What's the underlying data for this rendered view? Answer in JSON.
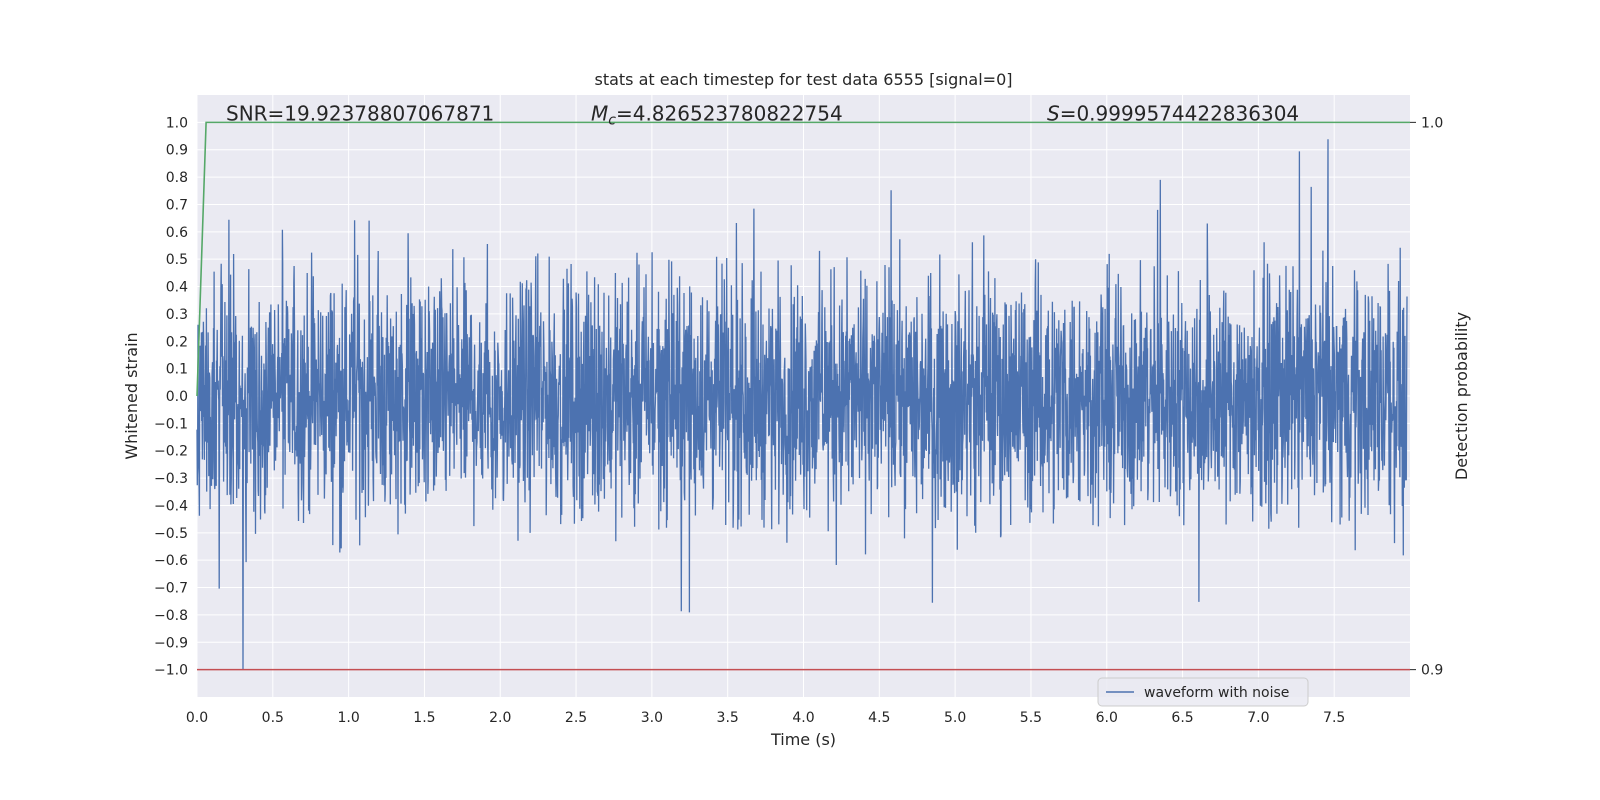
{
  "chart_data": {
    "type": "line",
    "title": "stats at each timestep for test data 6555 [signal=0]",
    "xlabel": "Time (s)",
    "ylabel": "Whitened strain",
    "y2label": "Detection probability",
    "xlim": [
      0.0,
      8.0
    ],
    "ylim": [
      -1.1,
      1.1
    ],
    "y2lim": [
      0.895,
      1.005
    ],
    "xticks": [
      "0.0",
      "0.5",
      "1.0",
      "1.5",
      "2.0",
      "2.5",
      "3.0",
      "3.5",
      "4.0",
      "4.5",
      "5.0",
      "5.5",
      "6.0",
      "6.5",
      "7.0",
      "7.5"
    ],
    "yticks": [
      "1.0",
      "0.9",
      "0.8",
      "0.7",
      "0.6",
      "0.5",
      "0.4",
      "0.3",
      "0.2",
      "0.1",
      "0.0",
      "−0.1",
      "−0.2",
      "−0.3",
      "−0.4",
      "−0.5",
      "−0.6",
      "−0.7",
      "−0.8",
      "−0.9",
      "−1.0"
    ],
    "y2ticks": [
      "1.0",
      "0.9"
    ],
    "annotations": {
      "snr": "SNR=19.92378807067871",
      "mc_symbol": "M",
      "mc_sub": "c",
      "mc_value": "=4.826523780822754",
      "s_symbol": "S",
      "s_value": "=0.9999574422836304"
    },
    "legend": {
      "label": "waveform with noise",
      "position": "lower right"
    },
    "series": [
      {
        "name": "waveform with noise",
        "color": "#4c72b0",
        "style": "dense noise",
        "amplitude_envelope": [
          -1.0,
          1.0
        ]
      },
      {
        "name": "",
        "color": "#55a868",
        "x": [
          0.0,
          0.06,
          0.1,
          8.0
        ],
        "y": [
          0.0,
          1.0,
          1.0,
          1.0
        ]
      },
      {
        "name": "",
        "color": "#c44e52",
        "x": [
          0.0,
          8.0
        ],
        "y": [
          -1.0,
          -1.0
        ]
      }
    ],
    "colors": {
      "background": "#eaeaf2",
      "grid": "#ffffff"
    }
  }
}
